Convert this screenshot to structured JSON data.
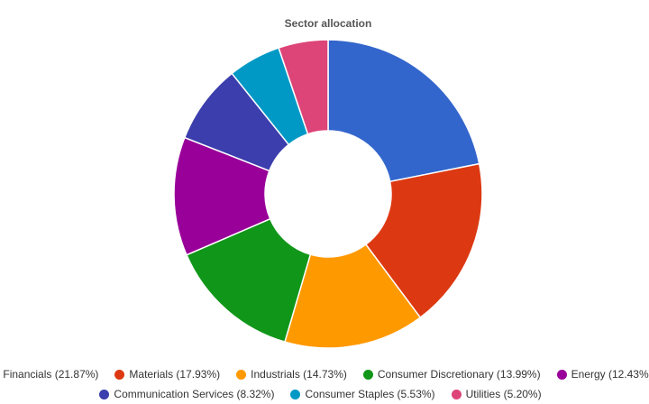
{
  "chart_data": {
    "type": "pie",
    "title": "Sector allocation",
    "legend_position": "bottom",
    "slices": [
      {
        "label": "Financials",
        "value": 21.87,
        "legend": "Financials (21.87%)",
        "color": "#3366cc"
      },
      {
        "label": "Materials",
        "value": 17.93,
        "legend": "Materials (17.93%)",
        "color": "#dc3912"
      },
      {
        "label": "Industrials",
        "value": 14.73,
        "legend": "Industrials (14.73%)",
        "color": "#ff9900"
      },
      {
        "label": "Consumer Discretionary",
        "value": 13.99,
        "legend": "Consumer Discretionary (13.99%)",
        "color": "#109618"
      },
      {
        "label": "Energy",
        "value": 12.43,
        "legend": "Energy (12.43%)",
        "color": "#990099"
      },
      {
        "label": "Communication Services",
        "value": 8.32,
        "legend": "Communication Services (8.32%)",
        "color": "#3b3eac"
      },
      {
        "label": "Consumer Staples",
        "value": 5.53,
        "legend": "Consumer Staples (5.53%)",
        "color": "#0099c6"
      },
      {
        "label": "Utilities",
        "value": 5.2,
        "legend": "Utilities (5.20%)",
        "color": "#dd4477"
      }
    ]
  }
}
